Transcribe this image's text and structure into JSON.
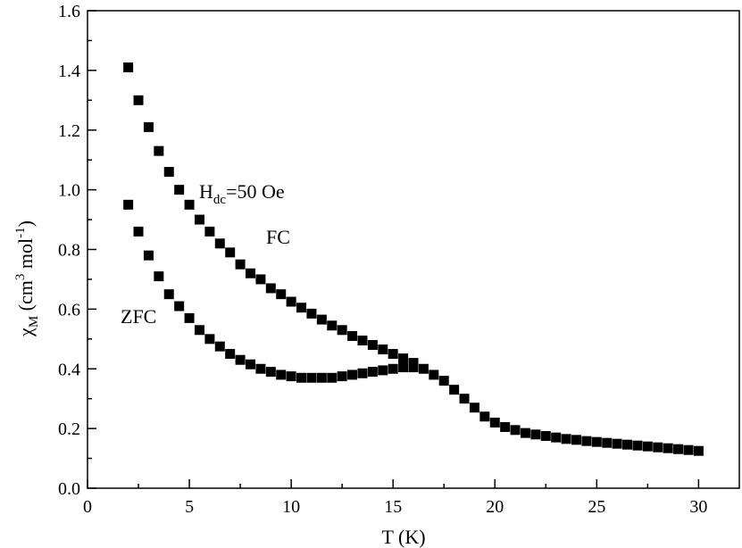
{
  "chart_data": {
    "type": "scatter",
    "xlabel": "T (K)",
    "ylabel": {
      "base": "χ",
      "sub": "M",
      "rest1": " (cm",
      "sup1": "3",
      "rest2": " mol",
      "sup2": "-1",
      "rest3": ")"
    },
    "xlim": [
      0,
      32
    ],
    "ylim": [
      0,
      1.6
    ],
    "xticks": [
      "0",
      "5",
      "10",
      "15",
      "20",
      "25",
      "30"
    ],
    "yticks": [
      "0.0",
      "0.2",
      "0.4",
      "0.6",
      "0.8",
      "1.0",
      "1.2",
      "1.4",
      "1.6"
    ],
    "grid": false,
    "marker": "square",
    "annotations": {
      "field": {
        "base": "H",
        "sub": "dc",
        "rest": "=50 Oe"
      },
      "fc": "FC",
      "zfc": "ZFC"
    },
    "series": [
      {
        "key": "fc",
        "x": [
          2.0,
          2.5,
          3.0,
          3.5,
          4.0,
          4.5,
          5.0,
          5.5,
          6.0,
          6.5,
          7.0,
          7.5,
          8.0,
          8.5,
          9.0,
          9.5,
          10.0,
          10.5,
          11.0,
          11.5,
          12.0,
          12.5,
          13.0,
          13.5,
          14.0,
          14.5,
          15.0,
          15.5,
          16.0,
          16.5,
          17.0,
          17.5,
          18.0,
          18.5,
          19.0,
          19.5,
          20.0,
          20.5,
          21.0,
          21.5,
          22.0,
          22.5,
          23.0,
          23.5,
          24.0,
          24.5,
          25.0,
          25.5,
          26.0,
          26.5,
          27.0,
          27.5,
          28.0,
          28.5,
          29.0,
          29.5,
          30.0
        ],
        "y": [
          1.41,
          1.3,
          1.21,
          1.13,
          1.06,
          1.0,
          0.95,
          0.9,
          0.86,
          0.82,
          0.79,
          0.75,
          0.72,
          0.7,
          0.67,
          0.65,
          0.625,
          0.605,
          0.585,
          0.565,
          0.545,
          0.53,
          0.51,
          0.495,
          0.48,
          0.465,
          0.45,
          0.435,
          0.42,
          0.4,
          0.38,
          0.36,
          0.33,
          0.3,
          0.27,
          0.24,
          0.22,
          0.205,
          0.195,
          0.185,
          0.18,
          0.175,
          0.17,
          0.165,
          0.162,
          0.158,
          0.155,
          0.152,
          0.149,
          0.146,
          0.143,
          0.14,
          0.137,
          0.134,
          0.131,
          0.128,
          0.125
        ]
      },
      {
        "key": "zfc",
        "x": [
          2.0,
          2.5,
          3.0,
          3.5,
          4.0,
          4.5,
          5.0,
          5.5,
          6.0,
          6.5,
          7.0,
          7.5,
          8.0,
          8.5,
          9.0,
          9.5,
          10.0,
          10.5,
          11.0,
          11.5,
          12.0,
          12.5,
          13.0,
          13.5,
          14.0,
          14.5,
          15.0,
          15.5,
          16.0
        ],
        "y": [
          0.95,
          0.86,
          0.78,
          0.71,
          0.65,
          0.61,
          0.57,
          0.53,
          0.5,
          0.475,
          0.45,
          0.43,
          0.415,
          0.4,
          0.39,
          0.38,
          0.375,
          0.37,
          0.37,
          0.37,
          0.37,
          0.375,
          0.38,
          0.385,
          0.39,
          0.395,
          0.4,
          0.405,
          0.405
        ]
      }
    ]
  }
}
